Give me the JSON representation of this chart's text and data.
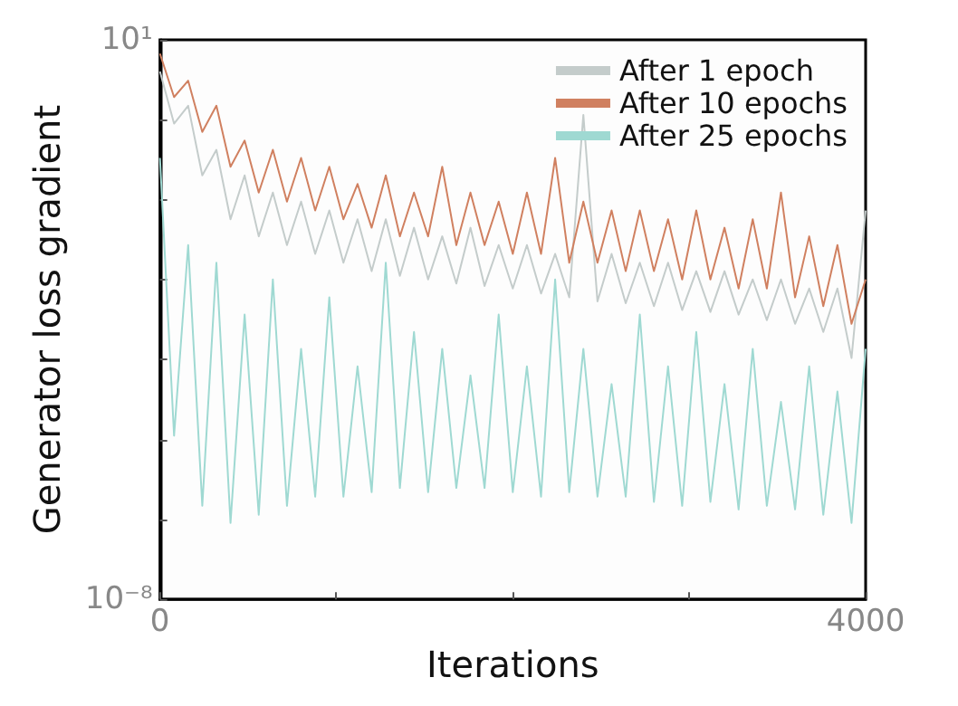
{
  "chart_data": {
    "type": "line",
    "xlabel": "Iterations",
    "ylabel": "Generator loss gradient",
    "log": "y",
    "legend": "top right",
    "xlim": [
      0,
      4000
    ],
    "xticks": [
      0,
      {
        "value": 1000,
        "label": null
      },
      {
        "value": 2000,
        "label": null
      },
      {
        "value": 3000,
        "label": null
      },
      4000
    ],
    "ylim": [
      1e-08,
      10
    ],
    "yticks": [
      {
        "value": 10,
        "label": "10¹"
      },
      {
        "value": 0.52,
        "label": null
      },
      {
        "value": 0.027,
        "label": null
      },
      {
        "value": 0.0014,
        "label": null
      },
      {
        "value": 7.2e-05,
        "label": null
      },
      {
        "value": 3.7e-06,
        "label": null
      },
      {
        "value": 1.9e-07,
        "label": null
      },
      {
        "value": 1e-08,
        "label": "10⁻⁸"
      }
    ],
    "x": [
      0,
      80,
      160,
      240,
      320,
      400,
      480,
      560,
      640,
      720,
      800,
      880,
      960,
      1040,
      1120,
      1200,
      1280,
      1360,
      1440,
      1520,
      1600,
      1680,
      1760,
      1840,
      1920,
      2000,
      2080,
      2160,
      2240,
      2320,
      2400,
      2480,
      2560,
      2640,
      2720,
      2800,
      2880,
      2960,
      3040,
      3120,
      3200,
      3280,
      3360,
      3440,
      3520,
      3600,
      3680,
      3760,
      3840,
      3920,
      4000
    ],
    "series": [
      {
        "name": "After 1 epoch",
        "color": "#c4cccb",
        "values": [
          3.1,
          0.45,
          0.87,
          0.066,
          0.17,
          0.013,
          0.066,
          0.0069,
          0.035,
          0.005,
          0.025,
          0.0036,
          0.018,
          0.0026,
          0.013,
          0.0019,
          0.013,
          0.0016,
          0.0095,
          0.0014,
          0.0069,
          0.0012,
          0.0095,
          0.0011,
          0.005,
          0.001,
          0.005,
          0.00083,
          0.0036,
          0.00072,
          0.62,
          0.00062,
          0.0036,
          0.00058,
          0.0026,
          0.00052,
          0.0026,
          0.00045,
          0.0019,
          0.00042,
          0.0019,
          0.00038,
          0.0014,
          0.00031,
          0.0014,
          0.00027,
          0.001,
          0.0002,
          0.001,
          7.6e-05,
          0.018
        ]
      },
      {
        "name": "After 10 epochs",
        "color": "#d08060",
        "values": [
          6.0,
          1.2,
          2.2,
          0.33,
          0.87,
          0.091,
          0.24,
          0.035,
          0.17,
          0.025,
          0.126,
          0.018,
          0.091,
          0.013,
          0.048,
          0.0095,
          0.066,
          0.0069,
          0.035,
          0.0069,
          0.091,
          0.005,
          0.035,
          0.005,
          0.025,
          0.0036,
          0.035,
          0.0036,
          0.126,
          0.0026,
          0.025,
          0.0026,
          0.018,
          0.0019,
          0.018,
          0.0019,
          0.013,
          0.0014,
          0.018,
          0.0014,
          0.0095,
          0.001,
          0.013,
          0.001,
          0.035,
          0.00072,
          0.0069,
          0.00052,
          0.005,
          0.00027,
          0.0014
        ]
      },
      {
        "name": "After 25 epochs",
        "color": "#9fd9d2",
        "values": [
          0.126,
          4.3e-06,
          0.005,
          3.2e-07,
          0.0026,
          1.7e-07,
          0.00038,
          2.3e-07,
          0.0014,
          3.2e-07,
          0.000107,
          4.5e-07,
          0.00072,
          4.5e-07,
          5.6e-05,
          5.3e-07,
          0.0026,
          6.2e-07,
          0.0002,
          5.3e-07,
          0.000107,
          6.2e-07,
          4e-05,
          6.2e-07,
          0.00038,
          5.3e-07,
          5.6e-05,
          4.5e-07,
          0.0014,
          5.3e-07,
          0.000107,
          4.5e-07,
          2.9e-05,
          4.5e-07,
          0.00038,
          3.7e-07,
          5.6e-05,
          3.2e-07,
          0.0002,
          3.7e-07,
          2.9e-05,
          2.8e-07,
          0.000107,
          3.2e-07,
          1.5e-05,
          2.8e-07,
          5.6e-05,
          2.3e-07,
          2.2e-05,
          1.7e-07,
          0.000107
        ]
      }
    ]
  }
}
